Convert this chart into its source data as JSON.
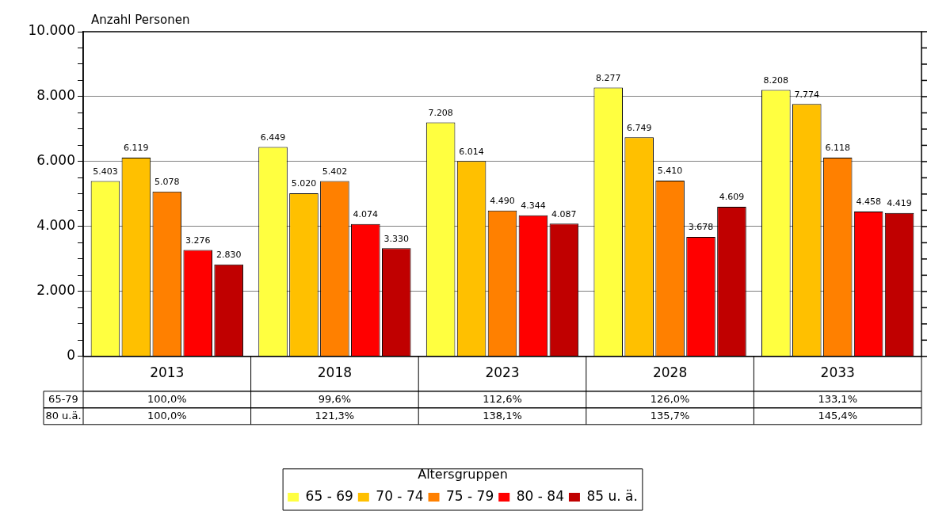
{
  "chart_data": {
    "type": "bar",
    "ylabel": "Anzahl Personen",
    "categories": [
      "2013",
      "2018",
      "2023",
      "2028",
      "2033"
    ],
    "series": [
      {
        "name": "65 - 69",
        "color": "#ffff40",
        "values": [
          5403,
          6449,
          7208,
          8277,
          8208
        ],
        "value_labels": [
          "5.403",
          "6.449",
          "7.208",
          "8.277",
          "8.208"
        ]
      },
      {
        "name": "70 - 74",
        "color": "#ffc000",
        "values": [
          6119,
          5020,
          6014,
          6749,
          7774
        ],
        "value_labels": [
          "6.119",
          "5.020",
          "6.014",
          "6.749",
          "7.774"
        ]
      },
      {
        "name": "75 - 79",
        "color": "#ff8000",
        "values": [
          5078,
          5402,
          4490,
          5410,
          6118
        ],
        "value_labels": [
          "5.078",
          "5.402",
          "4.490",
          "5.410",
          "6.118"
        ]
      },
      {
        "name": "80 - 84",
        "color": "#ff0000",
        "values": [
          3276,
          4074,
          4344,
          3678,
          4458
        ],
        "value_labels": [
          "3.276",
          "4.074",
          "4.344",
          "3.678",
          "4.458"
        ]
      },
      {
        "name": "85 u. ä.",
        "color": "#c00000",
        "values": [
          2830,
          3330,
          4087,
          4609,
          4419
        ],
        "value_labels": [
          "2.830",
          "3.330",
          "4.087",
          "4.609",
          "4.419"
        ]
      }
    ],
    "ylim": [
      0,
      10000
    ],
    "yticks": [
      {
        "value": 0,
        "label": "0"
      },
      {
        "value": 500,
        "label": null
      },
      {
        "value": 1000,
        "label": null
      },
      {
        "value": 1500,
        "label": null
      },
      {
        "value": 2000,
        "label": "2.000"
      },
      {
        "value": 2500,
        "label": null
      },
      {
        "value": 3000,
        "label": null
      },
      {
        "value": 3500,
        "label": null
      },
      {
        "value": 4000,
        "label": "4.000"
      },
      {
        "value": 4500,
        "label": null
      },
      {
        "value": 5000,
        "label": null
      },
      {
        "value": 5500,
        "label": null
      },
      {
        "value": 6000,
        "label": "6.000"
      },
      {
        "value": 6500,
        "label": null
      },
      {
        "value": 7000,
        "label": null
      },
      {
        "value": 7500,
        "label": null
      },
      {
        "value": 8000,
        "label": "8.000"
      },
      {
        "value": 8500,
        "label": null
      },
      {
        "value": 9000,
        "label": null
      },
      {
        "value": 9500,
        "label": null
      },
      {
        "value": 10000,
        "label": "10.000"
      }
    ],
    "grid": "y",
    "legend": "bottom",
    "legend_title": "Altersgruppen",
    "annotations": [
      "65-79",
      "100,0%",
      "99,6%",
      "112,6%",
      "126,0%",
      "133,1%",
      "80 u.ä.",
      "100,0%",
      "121,3%",
      "138,1%",
      "135,7%",
      "145,4%"
    ]
  }
}
